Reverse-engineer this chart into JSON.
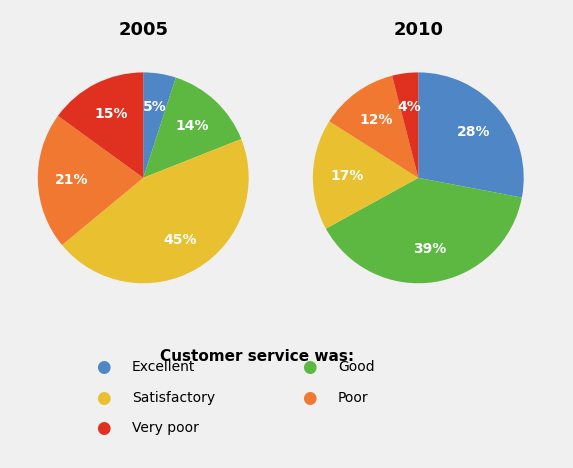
{
  "title_2005": "2005",
  "title_2010": "2010",
  "legend_title": "Customer service was:",
  "legend_col1": [
    "Excellent",
    "Satisfactory",
    "Very poor"
  ],
  "legend_col2": [
    "Good",
    "Poor"
  ],
  "categories": [
    "Excellent",
    "Good",
    "Satisfactory",
    "Poor",
    "Very poor"
  ],
  "colors": [
    "#4F86C6",
    "#5CB840",
    "#E8C030",
    "#F07830",
    "#E03020"
  ],
  "values_2005": [
    5,
    14,
    45,
    21,
    15
  ],
  "values_2010": [
    28,
    39,
    17,
    12,
    4
  ],
  "background_color": "#f0f0f0",
  "title_fontsize": 13,
  "label_fontsize": 10,
  "legend_title_fontsize": 11,
  "legend_fontsize": 10,
  "label_color": "white"
}
